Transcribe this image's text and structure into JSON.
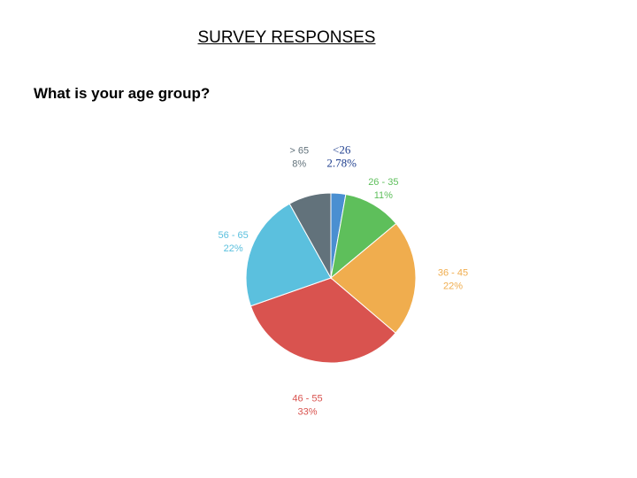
{
  "page": {
    "title": "SURVEY RESPONSES",
    "question": "What is your age group?"
  },
  "chart_data": {
    "type": "pie",
    "categories": [
      "<26",
      "26 - 35",
      "36 - 45",
      "46 - 55",
      "56 - 65",
      "> 65"
    ],
    "values": [
      2.78,
      11,
      22,
      33,
      22,
      8
    ],
    "value_labels": [
      "2.78%",
      "11%",
      "22%",
      "33%",
      "22%",
      "8%"
    ],
    "colors": [
      "#4a8fd1",
      "#5ebf5b",
      "#f0ad4e",
      "#d9534f",
      "#5bc0de",
      "#62727b"
    ],
    "label_colors": [
      "#1f3f8f",
      "#5ebf5b",
      "#f0ad4e",
      "#d9534f",
      "#5bc0de",
      "#62727b"
    ],
    "start_angle_deg": 0,
    "direction": "clockwise"
  }
}
